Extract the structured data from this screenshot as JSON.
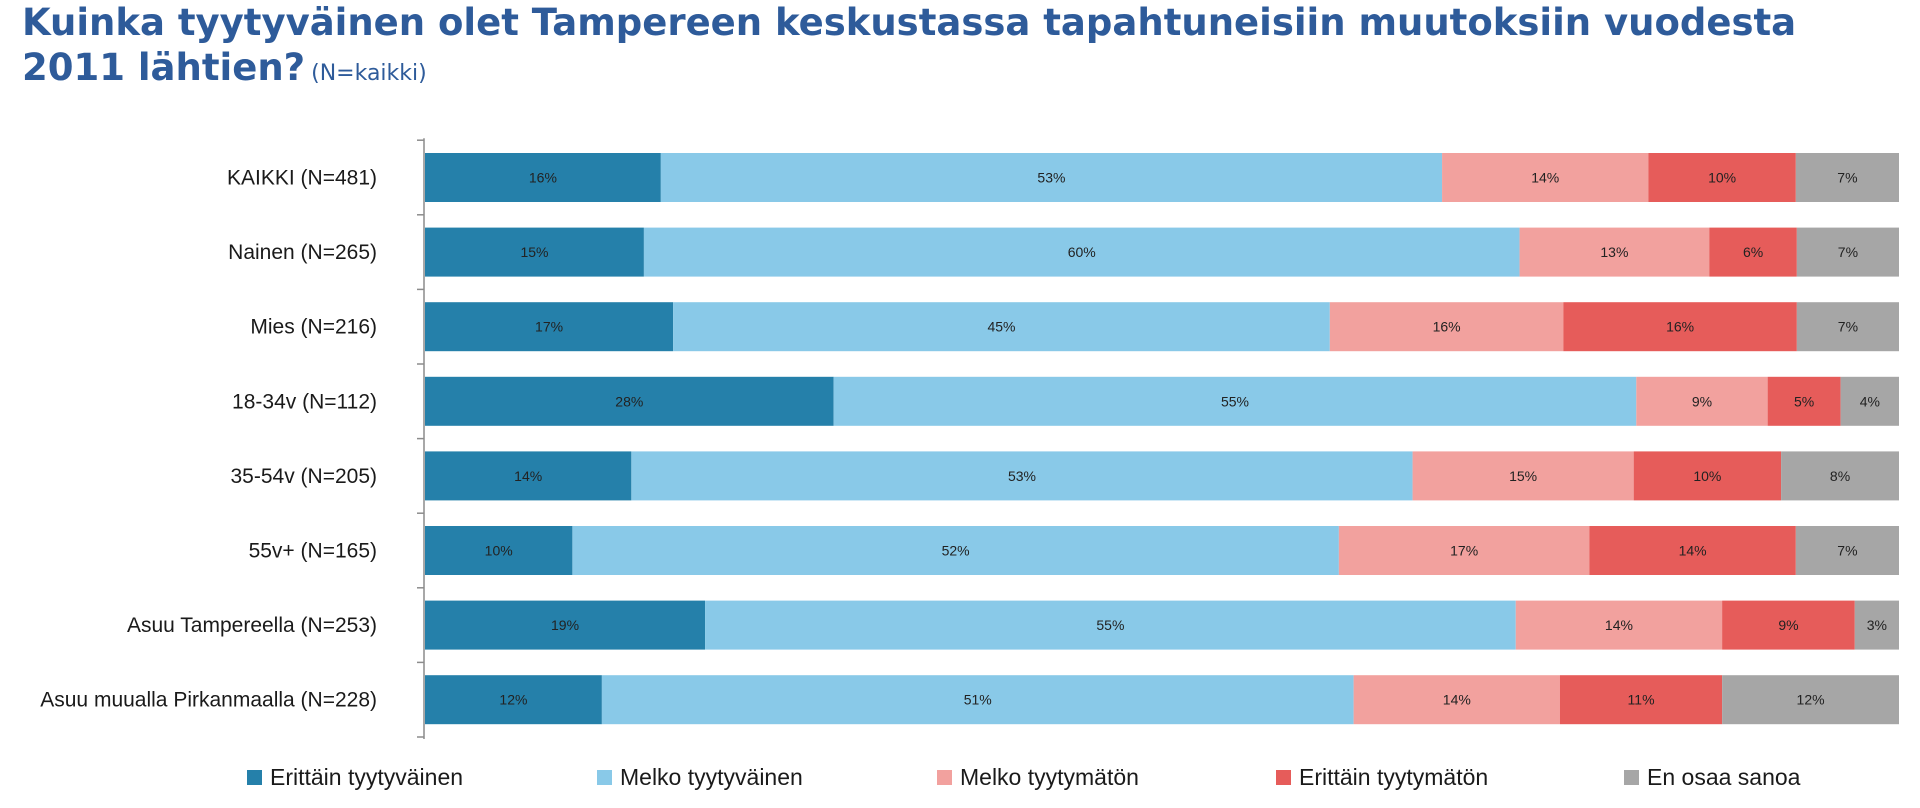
{
  "title": "Kuinka tyytyväinen olet Tampereen keskustassa tapahtuneisiin muutoksiin vuodesta 2011 lähtien?",
  "subtitle": "(N=kaikki)",
  "chart_data": {
    "type": "bar",
    "orientation": "horizontal",
    "stacked": true,
    "percent_stacked": true,
    "categories": [
      "KAIKKI (N=481)",
      "Nainen (N=265)",
      "Mies (N=216)",
      "18-34v (N=112)",
      "35-54v (N=205)",
      "55v+ (N=165)",
      "Asuu Tampereella (N=253)",
      "Asuu muualla Pirkanmaalla (N=228)"
    ],
    "series": [
      {
        "name": "Erittäin tyytyväinen",
        "color": "#2580aa",
        "values": [
          16,
          15,
          17,
          28,
          14,
          10,
          19,
          12
        ]
      },
      {
        "name": "Melko tyytyväinen",
        "color": "#89c9e8",
        "values": [
          53,
          60,
          45,
          55,
          53,
          52,
          55,
          51
        ]
      },
      {
        "name": "Melko tyytymätön",
        "color": "#f2a19e",
        "values": [
          14,
          13,
          16,
          9,
          15,
          17,
          14,
          14
        ]
      },
      {
        "name": "Erittäin tyytymätön",
        "color": "#e65c5a",
        "values": [
          10,
          6,
          16,
          5,
          10,
          14,
          9,
          11
        ]
      },
      {
        "name": "En osaa sanoa",
        "color": "#a6a6a6",
        "values": [
          7,
          7,
          7,
          4,
          8,
          7,
          3,
          12
        ]
      }
    ],
    "value_suffix": "%",
    "legend_position": "bottom",
    "grid": false
  }
}
